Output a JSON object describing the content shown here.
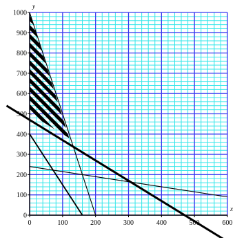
{
  "chart_data": {
    "type": "line",
    "xlabel": "x",
    "ylabel": "y",
    "xlim": [
      0,
      600
    ],
    "ylim": [
      0,
      1000
    ],
    "x_ticks": [
      0,
      100,
      200,
      300,
      400,
      500,
      600
    ],
    "y_ticks": [
      0,
      100,
      200,
      300,
      400,
      500,
      600,
      700,
      800,
      900,
      1000
    ],
    "grid": {
      "major_color": "#3a3af0",
      "minor_color": "#36e6ea",
      "major_x_step": 100,
      "major_y_step": 100,
      "minor_x_step": 20,
      "minor_y_step": 20
    },
    "lines": [
      {
        "points": [
          [
            -70,
            540
          ],
          [
            600,
            -130
          ]
        ],
        "weight": "thick"
      },
      {
        "points": [
          [
            0,
            1000
          ],
          [
            200,
            0
          ]
        ],
        "weight": "thin"
      },
      {
        "points": [
          [
            0,
            400
          ],
          [
            160,
            0
          ]
        ],
        "weight": "medium"
      },
      {
        "points": [
          [
            0,
            240
          ],
          [
            600,
            90
          ]
        ],
        "weight": "thin"
      }
    ],
    "shaded_region": {
      "pattern": "diagonal-stripes",
      "vertices": [
        [
          0,
          1000
        ],
        [
          0,
          500
        ],
        [
          120,
          380
        ]
      ]
    }
  }
}
